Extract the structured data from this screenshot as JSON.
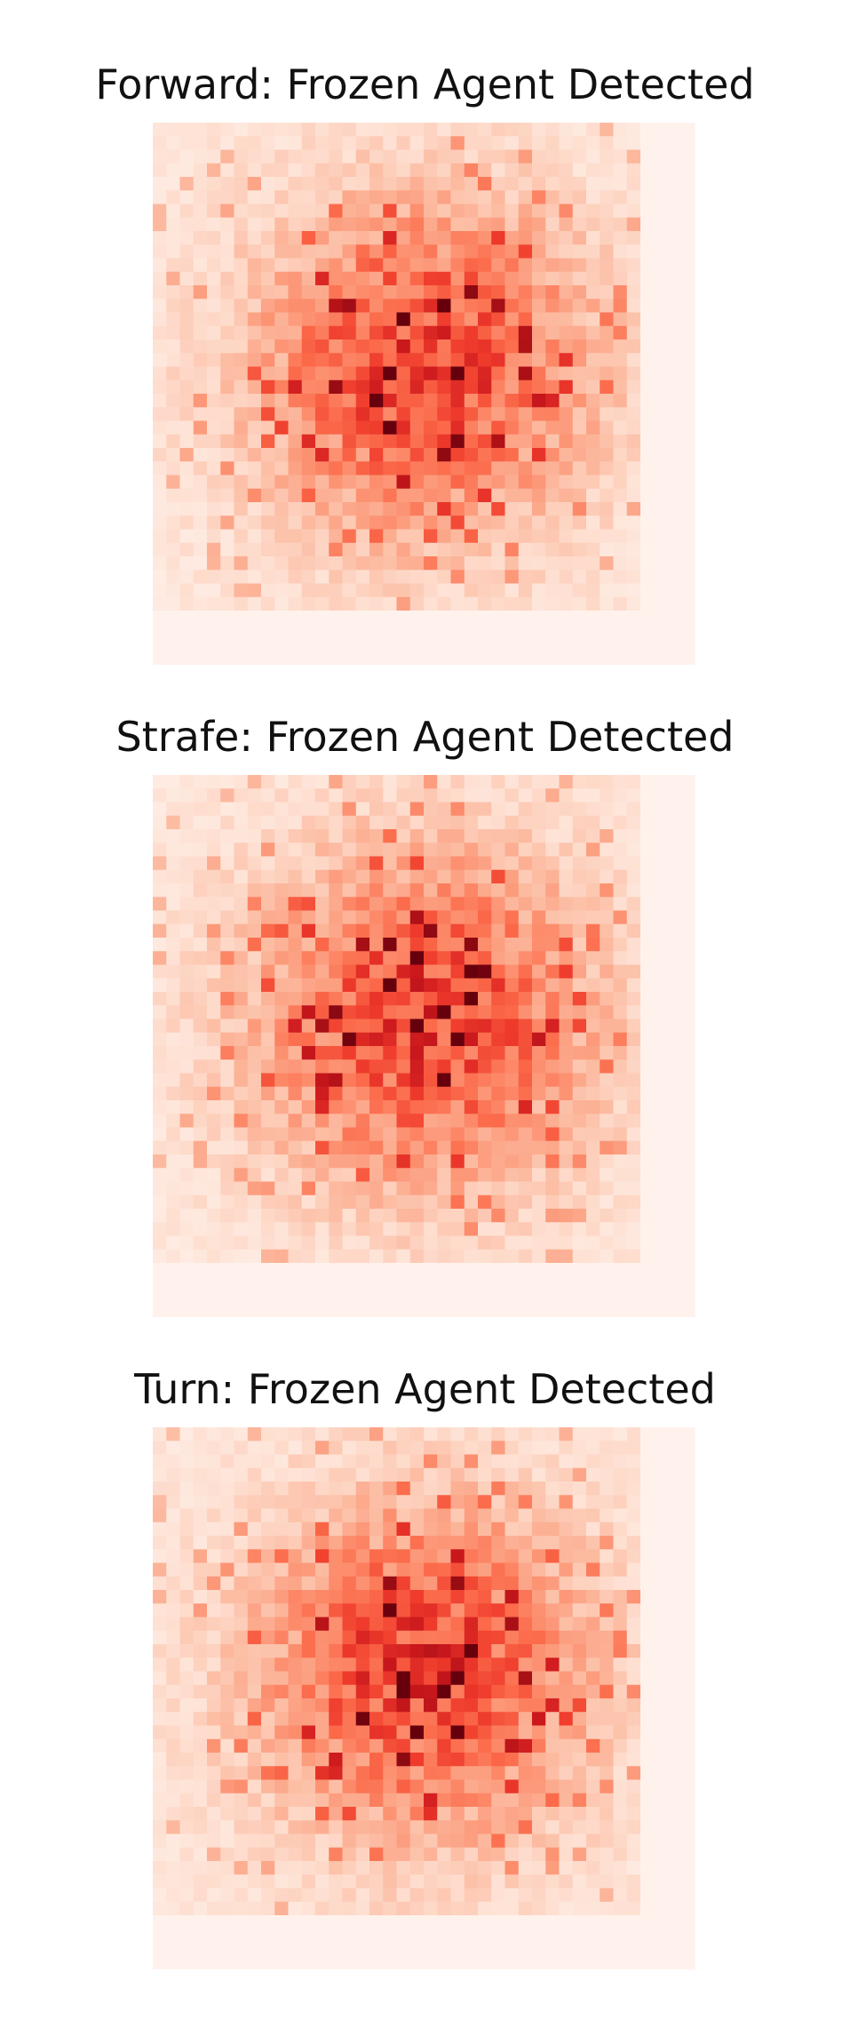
{
  "chart_data": [
    {
      "type": "heatmap",
      "title": "Forward: Frozen Agent Detected",
      "colormap": "Reds",
      "seed": 11,
      "axes": "off",
      "grid": false,
      "legend": "none"
    },
    {
      "type": "heatmap",
      "title": "Strafe: Frozen Agent Detected",
      "colormap": "Reds",
      "seed": 23,
      "axes": "off",
      "grid": false,
      "legend": "none"
    },
    {
      "type": "heatmap",
      "title": "Turn: Frozen Agent Detected",
      "colormap": "Reds",
      "seed": 37,
      "axes": "off",
      "grid": false,
      "legend": "none"
    }
  ]
}
